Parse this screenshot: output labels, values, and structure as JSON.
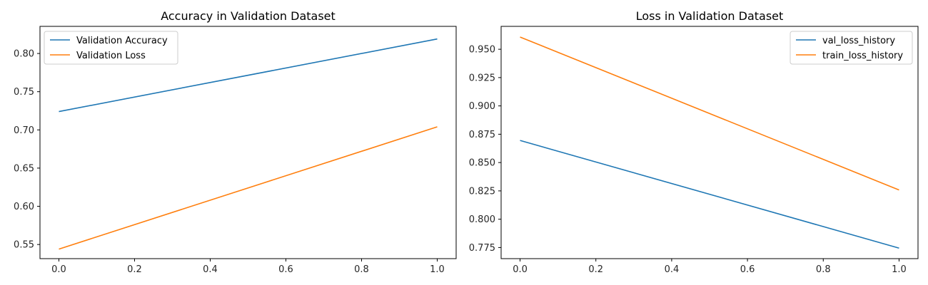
{
  "chart_data": [
    {
      "type": "line",
      "title": "Accuracy in Validation Dataset",
      "xlim": [
        -0.05,
        1.05
      ],
      "ylim": [
        0.5315,
        0.8355
      ],
      "xticks": [
        0.0,
        0.2,
        0.4,
        0.6,
        0.8,
        1.0
      ],
      "xtick_labels": [
        "0.0",
        "0.2",
        "0.4",
        "0.6",
        "0.8",
        "1.0"
      ],
      "yticks": [
        0.55,
        0.6,
        0.65,
        0.7,
        0.75,
        0.8
      ],
      "ytick_labels": [
        "0.55",
        "0.60",
        "0.65",
        "0.70",
        "0.75",
        "0.80"
      ],
      "legend_position": "top-left",
      "grid": false,
      "series": [
        {
          "name": "Validation Accuracy",
          "color": "#1f77b4",
          "x": [
            0,
            1
          ],
          "y": [
            0.724,
            0.819
          ]
        },
        {
          "name": "Validation Loss",
          "color": "#ff7f0e",
          "x": [
            0,
            1
          ],
          "y": [
            0.544,
            0.704
          ]
        }
      ]
    },
    {
      "type": "line",
      "title": "Loss in Validation Dataset",
      "xlim": [
        -0.05,
        1.05
      ],
      "ylim": [
        0.7652,
        0.9702
      ],
      "xticks": [
        0.0,
        0.2,
        0.4,
        0.6,
        0.8,
        1.0
      ],
      "xtick_labels": [
        "0.0",
        "0.2",
        "0.4",
        "0.6",
        "0.8",
        "1.0"
      ],
      "yticks": [
        0.775,
        0.8,
        0.825,
        0.85,
        0.875,
        0.9,
        0.925,
        0.95
      ],
      "ytick_labels": [
        "0.775",
        "0.800",
        "0.825",
        "0.850",
        "0.875",
        "0.900",
        "0.925",
        "0.950"
      ],
      "legend_position": "top-right",
      "grid": false,
      "series": [
        {
          "name": "val_loss_history",
          "color": "#1f77b4",
          "x": [
            0,
            1
          ],
          "y": [
            0.8695,
            0.7745
          ]
        },
        {
          "name": "train_loss_history",
          "color": "#ff7f0e",
          "x": [
            0,
            1
          ],
          "y": [
            0.9608,
            0.8258
          ]
        }
      ]
    }
  ]
}
